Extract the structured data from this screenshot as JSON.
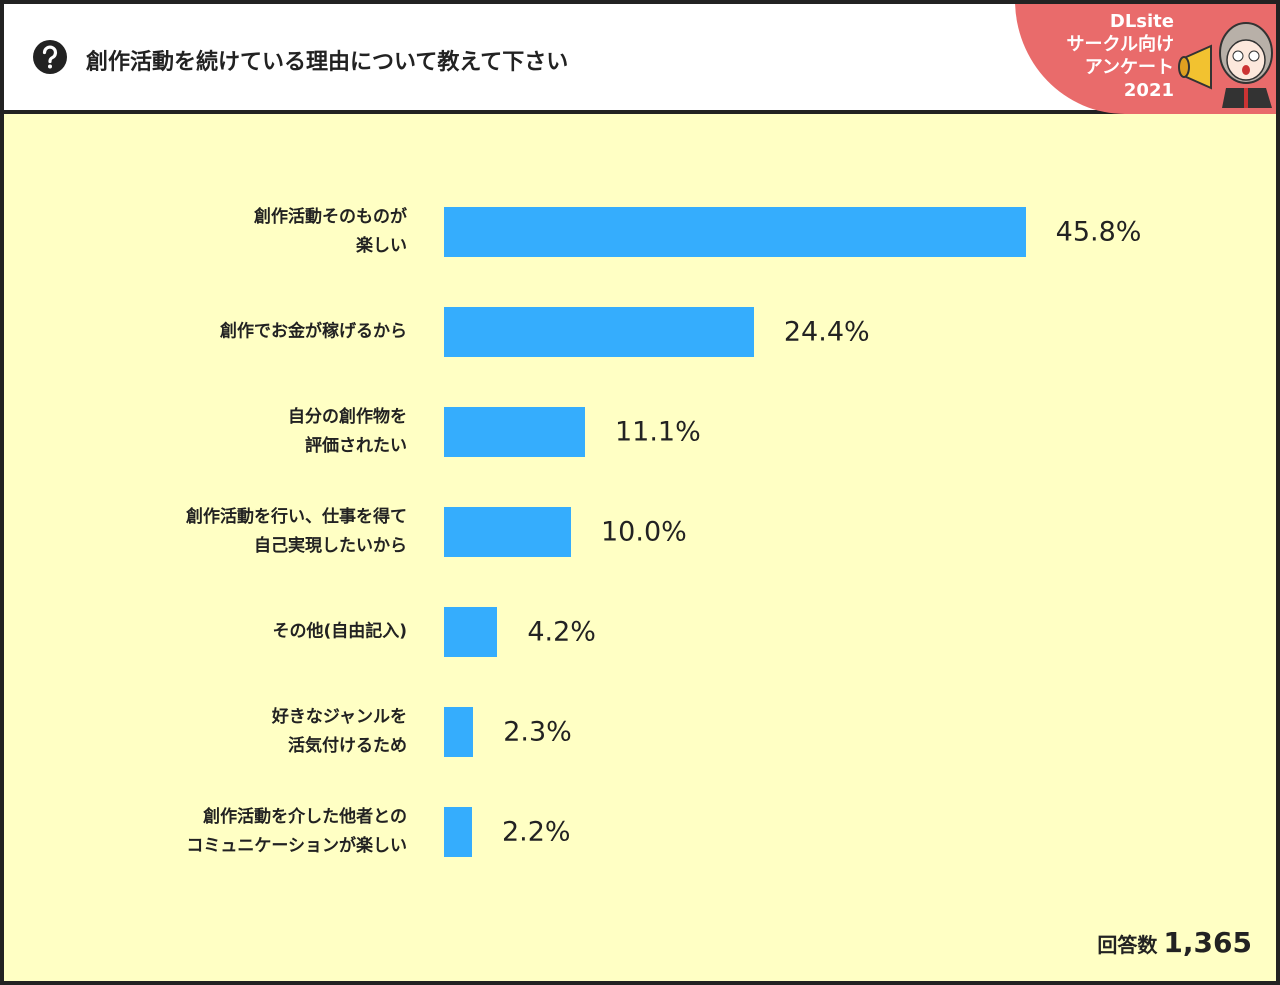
{
  "chart_data": {
    "type": "bar",
    "orientation": "horizontal",
    "title": "創作活動を続けている理由について教えて下さい",
    "badge": "DLsite\nサークル向け\nアンケート\n2021",
    "categories": [
      "創作活動そのものが\n楽しい",
      "創作でお金が稼げるから",
      "自分の創作物を\n評価されたい",
      "創作活動を行い、仕事を得て\n自己実現したいから",
      "その他(自由記入)",
      "好きなジャンルを\n活気付けるため",
      "創作活動を介した他者との\nコミュニケーションが楽しい"
    ],
    "values": [
      45.8,
      24.4,
      11.1,
      10.0,
      4.2,
      2.3,
      2.2
    ],
    "value_labels": [
      "45.8%",
      "24.4%",
      "11.1%",
      "10.0%",
      "4.2%",
      "2.3%",
      "2.2%"
    ],
    "color": "#35adfd",
    "response_count_label": "回答数",
    "response_count": "1,365"
  }
}
